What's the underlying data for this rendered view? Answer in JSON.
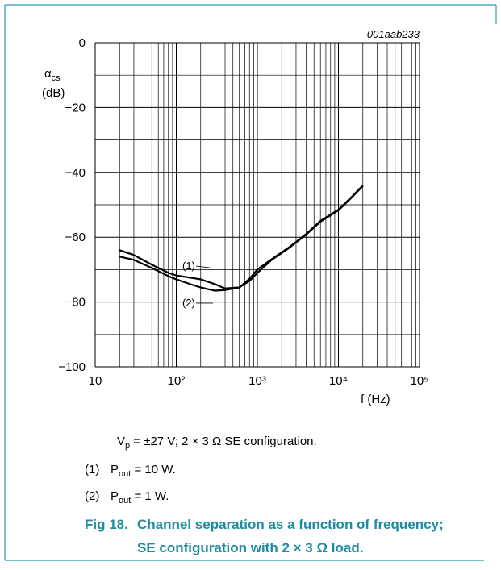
{
  "chart_data": {
    "type": "line",
    "figure_id": "001aab233",
    "ylabel": {
      "symbol": "α",
      "sub": "cs",
      "unit": "(dB)"
    },
    "xlabel": "f (Hz)",
    "xscale": "log",
    "xlim": [
      10,
      100000
    ],
    "ylim": [
      -100,
      0
    ],
    "xticks": [
      10,
      {
        "value": 100,
        "label": "10²"
      },
      {
        "value": 1000,
        "label": "10³"
      },
      {
        "value": 10000,
        "label": "10⁴"
      },
      {
        "value": 100000,
        "label": "10⁵"
      }
    ],
    "yticks": [
      {
        "value": -100,
        "label": "−100"
      },
      {
        "value": -80,
        "label": "−80"
      },
      {
        "value": -60,
        "label": "−60"
      },
      {
        "value": -40,
        "label": "−40"
      },
      {
        "value": -20,
        "label": "−20"
      },
      0
    ],
    "xgrid": [
      20,
      30,
      40,
      50,
      60,
      70,
      80,
      90,
      200,
      300,
      400,
      500,
      600,
      700,
      800,
      900,
      2000,
      3000,
      4000,
      5000,
      6000,
      7000,
      8000,
      9000,
      20000,
      30000,
      40000,
      50000,
      60000,
      70000,
      80000,
      90000
    ],
    "ygrid": [
      -90,
      -70,
      -50,
      -30,
      -10
    ],
    "grid": true,
    "x": [
      20,
      30,
      50,
      80,
      100,
      150,
      200,
      300,
      400,
      600,
      800,
      1000,
      1500,
      2500,
      4000,
      6000,
      10000,
      14000,
      20000
    ],
    "series": [
      {
        "name": "(1)",
        "color": "#000000",
        "values": [
          -64,
          -65.5,
          -68.5,
          -71,
          -71.8,
          -72.5,
          -73,
          -74.5,
          -75.8,
          -75.5,
          -72.8,
          -70,
          -66.8,
          -63,
          -59,
          -55,
          -51.5,
          -48,
          -44
        ]
      },
      {
        "name": "(2)",
        "color": "#000000",
        "values": [
          -66,
          -67,
          -69.5,
          -72,
          -73,
          -74.5,
          -75.5,
          -76.5,
          -76.3,
          -75.5,
          -73.5,
          -71,
          -67,
          -63.2,
          -59.2,
          -55.2,
          -51.7,
          -48.2,
          -44.2
        ]
      }
    ]
  },
  "condition": {
    "symbol": "V",
    "sub": "p",
    "text": " = ±27 V; 2 × 3 Ω SE configuration."
  },
  "notes": [
    {
      "label": "(1)",
      "symbol": "P",
      "sub": "out",
      "text": " = 10 W."
    },
    {
      "label": "(2)",
      "symbol": "P",
      "sub": "out",
      "text": " = 1 W."
    }
  ],
  "caption": {
    "number": "Fig 18.",
    "line1": "Channel separation as a function of frequency;",
    "line2": "SE configuration with 2 × 3 Ω load."
  }
}
